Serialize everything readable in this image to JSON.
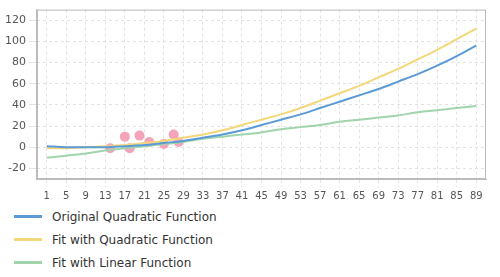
{
  "chart_data": {
    "type": "line",
    "xlim": [
      -1,
      91
    ],
    "xticks": [
      1,
      5,
      9,
      13,
      17,
      21,
      25,
      29,
      33,
      37,
      41,
      45,
      49,
      53,
      57,
      61,
      65,
      69,
      73,
      77,
      81,
      85,
      89
    ],
    "ylim": [
      -30,
      130
    ],
    "yticks": [
      -20,
      0,
      20,
      40,
      60,
      80,
      100,
      120
    ],
    "grid": true,
    "legend": "bottom-left",
    "series": [
      {
        "name": "Original Quadratic Function",
        "color": "#5b9bd5",
        "marker": "none",
        "line_style": "solid",
        "x": [
          1,
          5,
          9,
          13,
          17,
          21,
          25,
          29,
          33,
          37,
          41,
          45,
          49,
          53,
          57,
          61,
          65,
          69,
          73,
          77,
          81,
          85,
          89
        ],
        "values": [
          1,
          0,
          0,
          0,
          1,
          2,
          4,
          6,
          9,
          12,
          16,
          21,
          26,
          31,
          37,
          43,
          49,
          55,
          62,
          69,
          77,
          86,
          96
        ]
      },
      {
        "name": "Fit with Quadratic Function",
        "color": "#f3d77a",
        "marker": "none",
        "line_style": "solid",
        "x": [
          1,
          5,
          9,
          13,
          17,
          21,
          25,
          29,
          33,
          37,
          41,
          45,
          49,
          53,
          57,
          61,
          65,
          69,
          73,
          77,
          81,
          85,
          89
        ],
        "values": [
          -1,
          -1,
          0,
          1,
          2,
          4,
          6,
          9,
          12,
          16,
          21,
          26,
          31,
          37,
          44,
          51,
          58,
          66,
          74,
          83,
          92,
          102,
          112
        ]
      },
      {
        "name": "Fit with Linear Function",
        "color": "#9fd4ad",
        "marker": "none",
        "line_style": "solid",
        "x": [
          1,
          5,
          9,
          13,
          17,
          21,
          25,
          29,
          33,
          37,
          41,
          45,
          49,
          53,
          57,
          61,
          65,
          69,
          73,
          77,
          81,
          85,
          89
        ],
        "values": [
          -10,
          -8,
          -6,
          -3,
          -1,
          1,
          3,
          5,
          8,
          10,
          12,
          14,
          17,
          19,
          21,
          24,
          26,
          28,
          30,
          33,
          35,
          37,
          39
        ]
      },
      {
        "type": "scatter",
        "color": "#f4a3b8",
        "marker": "circle",
        "x": [
          14,
          17,
          18,
          20,
          22,
          25,
          27,
          28
        ],
        "values": [
          -1,
          10,
          -1,
          11,
          5,
          3,
          12,
          5
        ]
      }
    ]
  }
}
